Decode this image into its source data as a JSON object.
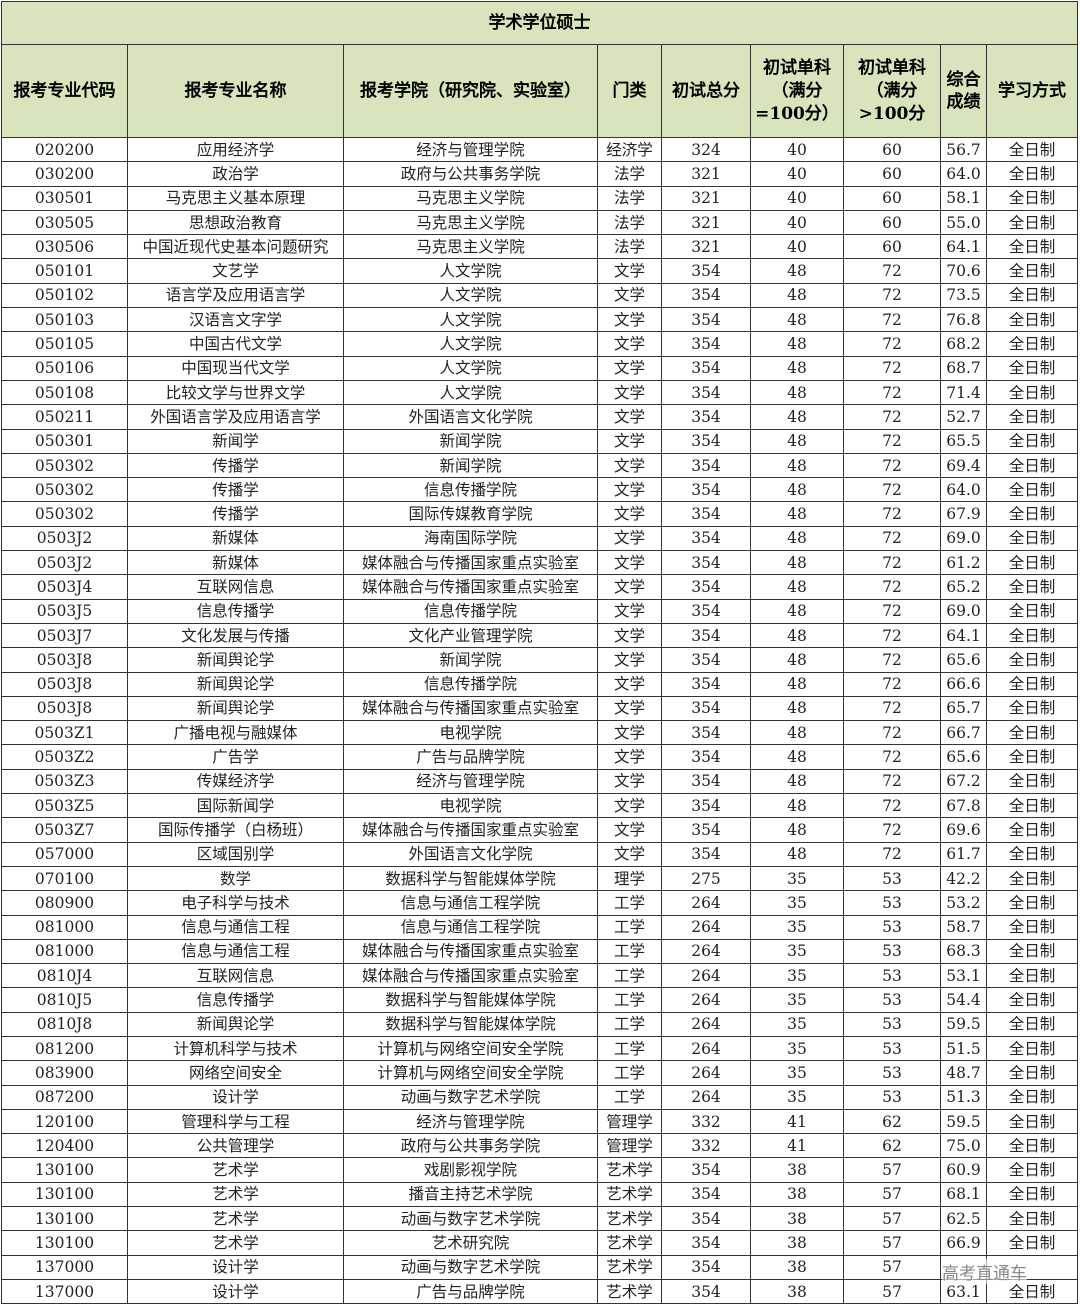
{
  "table": {
    "title": "学术学位硕士",
    "headers": [
      "报考专业代码",
      "报考专业名称",
      "报考学院（研究院、实验室）",
      "门类",
      "初试总分",
      "初试单科（满分=100分）",
      "初试单科（满分>100分",
      "综合成绩",
      "学习方式"
    ],
    "rows": [
      [
        "020200",
        "应用经济学",
        "经济与管理学院",
        "经济学",
        "324",
        "40",
        "60",
        "56.7",
        "全日制"
      ],
      [
        "030200",
        "政治学",
        "政府与公共事务学院",
        "法学",
        "321",
        "40",
        "60",
        "64.0",
        "全日制"
      ],
      [
        "030501",
        "马克思主义基本原理",
        "马克思主义学院",
        "法学",
        "321",
        "40",
        "60",
        "58.1",
        "全日制"
      ],
      [
        "030505",
        "思想政治教育",
        "马克思主义学院",
        "法学",
        "321",
        "40",
        "60",
        "55.0",
        "全日制"
      ],
      [
        "030506",
        "中国近现代史基本问题研究",
        "马克思主义学院",
        "法学",
        "321",
        "40",
        "60",
        "64.1",
        "全日制"
      ],
      [
        "050101",
        "文艺学",
        "人文学院",
        "文学",
        "354",
        "48",
        "72",
        "70.6",
        "全日制"
      ],
      [
        "050102",
        "语言学及应用语言学",
        "人文学院",
        "文学",
        "354",
        "48",
        "72",
        "73.5",
        "全日制"
      ],
      [
        "050103",
        "汉语言文字学",
        "人文学院",
        "文学",
        "354",
        "48",
        "72",
        "76.8",
        "全日制"
      ],
      [
        "050105",
        "中国古代文学",
        "人文学院",
        "文学",
        "354",
        "48",
        "72",
        "68.2",
        "全日制"
      ],
      [
        "050106",
        "中国现当代文学",
        "人文学院",
        "文学",
        "354",
        "48",
        "72",
        "68.7",
        "全日制"
      ],
      [
        "050108",
        "比较文学与世界文学",
        "人文学院",
        "文学",
        "354",
        "48",
        "72",
        "71.4",
        "全日制"
      ],
      [
        "050211",
        "外国语言学及应用语言学",
        "外国语言文化学院",
        "文学",
        "354",
        "48",
        "72",
        "52.7",
        "全日制"
      ],
      [
        "050301",
        "新闻学",
        "新闻学院",
        "文学",
        "354",
        "48",
        "72",
        "65.5",
        "全日制"
      ],
      [
        "050302",
        "传播学",
        "新闻学院",
        "文学",
        "354",
        "48",
        "72",
        "69.4",
        "全日制"
      ],
      [
        "050302",
        "传播学",
        "信息传播学院",
        "文学",
        "354",
        "48",
        "72",
        "64.0",
        "全日制"
      ],
      [
        "050302",
        "传播学",
        "国际传媒教育学院",
        "文学",
        "354",
        "48",
        "72",
        "67.9",
        "全日制"
      ],
      [
        "0503J2",
        "新媒体",
        "海南国际学院",
        "文学",
        "354",
        "48",
        "72",
        "69.0",
        "全日制"
      ],
      [
        "0503J2",
        "新媒体",
        "媒体融合与传播国家重点实验室",
        "文学",
        "354",
        "48",
        "72",
        "61.2",
        "全日制"
      ],
      [
        "0503J4",
        "互联网信息",
        "媒体融合与传播国家重点实验室",
        "文学",
        "354",
        "48",
        "72",
        "65.2",
        "全日制"
      ],
      [
        "0503J5",
        "信息传播学",
        "信息传播学院",
        "文学",
        "354",
        "48",
        "72",
        "69.0",
        "全日制"
      ],
      [
        "0503J7",
        "文化发展与传播",
        "文化产业管理学院",
        "文学",
        "354",
        "48",
        "72",
        "64.1",
        "全日制"
      ],
      [
        "0503J8",
        "新闻舆论学",
        "新闻学院",
        "文学",
        "354",
        "48",
        "72",
        "65.6",
        "全日制"
      ],
      [
        "0503J8",
        "新闻舆论学",
        "信息传播学院",
        "文学",
        "354",
        "48",
        "72",
        "66.6",
        "全日制"
      ],
      [
        "0503J8",
        "新闻舆论学",
        "媒体融合与传播国家重点实验室",
        "文学",
        "354",
        "48",
        "72",
        "65.7",
        "全日制"
      ],
      [
        "0503Z1",
        "广播电视与融媒体",
        "电视学院",
        "文学",
        "354",
        "48",
        "72",
        "66.7",
        "全日制"
      ],
      [
        "0503Z2",
        "广告学",
        "广告与品牌学院",
        "文学",
        "354",
        "48",
        "72",
        "65.6",
        "全日制"
      ],
      [
        "0503Z3",
        "传媒经济学",
        "经济与管理学院",
        "文学",
        "354",
        "48",
        "72",
        "67.2",
        "全日制"
      ],
      [
        "0503Z5",
        "国际新闻学",
        "电视学院",
        "文学",
        "354",
        "48",
        "72",
        "67.8",
        "全日制"
      ],
      [
        "0503Z7",
        "国际传播学（白杨班）",
        "媒体融合与传播国家重点实验室",
        "文学",
        "354",
        "48",
        "72",
        "69.6",
        "全日制"
      ],
      [
        "057000",
        "区域国别学",
        "外国语言文化学院",
        "文学",
        "354",
        "48",
        "72",
        "61.7",
        "全日制"
      ],
      [
        "070100",
        "数学",
        "数据科学与智能媒体学院",
        "理学",
        "275",
        "35",
        "53",
        "42.2",
        "全日制"
      ],
      [
        "080900",
        "电子科学与技术",
        "信息与通信工程学院",
        "工学",
        "264",
        "35",
        "53",
        "53.2",
        "全日制"
      ],
      [
        "081000",
        "信息与通信工程",
        "信息与通信工程学院",
        "工学",
        "264",
        "35",
        "53",
        "58.7",
        "全日制"
      ],
      [
        "081000",
        "信息与通信工程",
        "媒体融合与传播国家重点实验室",
        "工学",
        "264",
        "35",
        "53",
        "68.3",
        "全日制"
      ],
      [
        "0810J4",
        "互联网信息",
        "媒体融合与传播国家重点实验室",
        "工学",
        "264",
        "35",
        "53",
        "53.1",
        "全日制"
      ],
      [
        "0810J5",
        "信息传播学",
        "数据科学与智能媒体学院",
        "工学",
        "264",
        "35",
        "53",
        "54.4",
        "全日制"
      ],
      [
        "0810J8",
        "新闻舆论学",
        "数据科学与智能媒体学院",
        "工学",
        "264",
        "35",
        "53",
        "59.5",
        "全日制"
      ],
      [
        "081200",
        "计算机科学与技术",
        "计算机与网络空间安全学院",
        "工学",
        "264",
        "35",
        "53",
        "51.5",
        "全日制"
      ],
      [
        "083900",
        "网络空间安全",
        "计算机与网络空间安全学院",
        "工学",
        "264",
        "35",
        "53",
        "48.7",
        "全日制"
      ],
      [
        "087200",
        "设计学",
        "动画与数字艺术学院",
        "工学",
        "264",
        "35",
        "53",
        "51.3",
        "全日制"
      ],
      [
        "120100",
        "管理科学与工程",
        "经济与管理学院",
        "管理学",
        "332",
        "41",
        "62",
        "59.5",
        "全日制"
      ],
      [
        "120400",
        "公共管理学",
        "政府与公共事务学院",
        "管理学",
        "332",
        "41",
        "62",
        "75.0",
        "全日制"
      ],
      [
        "130100",
        "艺术学",
        "戏剧影视学院",
        "艺术学",
        "354",
        "38",
        "57",
        "60.9",
        "全日制"
      ],
      [
        "130100",
        "艺术学",
        "播音主持艺术学院",
        "艺术学",
        "354",
        "38",
        "57",
        "68.1",
        "全日制"
      ],
      [
        "130100",
        "艺术学",
        "动画与数字艺术学院",
        "艺术学",
        "354",
        "38",
        "57",
        "62.5",
        "全日制"
      ],
      [
        "130100",
        "艺术学",
        "艺术研究院",
        "艺术学",
        "354",
        "38",
        "57",
        "66.9",
        "全日制"
      ],
      [
        "137000",
        "设计学",
        "动画与数字艺术学院",
        "艺术学",
        "354",
        "38",
        "57",
        "",
        ""
      ],
      [
        "137000",
        "设计学",
        "广告与品牌学院",
        "艺术学",
        "354",
        "38",
        "57",
        "63.1",
        "全日制"
      ]
    ]
  },
  "watermark": "高考直通车"
}
